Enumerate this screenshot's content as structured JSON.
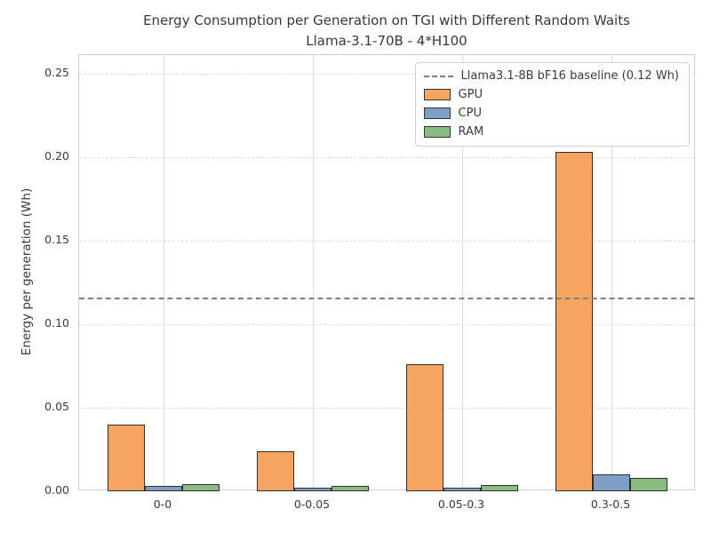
{
  "chart_data": {
    "type": "bar",
    "title": "Energy Consumption per Generation on TGI with Different Random Waits",
    "subtitle": "Llama-3.1-70B - 4*H100",
    "ylabel": "Energy per generation (Wh)",
    "xlabel": "",
    "categories": [
      "0-0",
      "0-0.05",
      "0.05-0.3",
      "0.3-0.5"
    ],
    "series": [
      {
        "name": "GPU",
        "color": "#F5A55F",
        "values": [
          0.04,
          0.024,
          0.076,
          0.203
        ]
      },
      {
        "name": "CPU",
        "color": "#7D9FC7",
        "values": [
          0.003,
          0.002,
          0.002,
          0.01
        ]
      },
      {
        "name": "RAM",
        "color": "#89BC80",
        "values": [
          0.0045,
          0.003,
          0.0035,
          0.008
        ]
      }
    ],
    "baseline": {
      "label": "Llama3.1-8B bF16 baseline (0.12 Wh)",
      "value": 0.116,
      "color": "#7f7f7f",
      "style": "dashed"
    },
    "yticks": [
      0,
      0.05,
      0.1,
      0.15,
      0.2,
      0.25
    ],
    "ytick_labels": [
      "0.00",
      "0.05",
      "0.10",
      "0.15",
      "0.20",
      "0.25"
    ],
    "ylim": [
      0,
      0.261
    ],
    "grid": true,
    "legend_position": "upper right"
  }
}
